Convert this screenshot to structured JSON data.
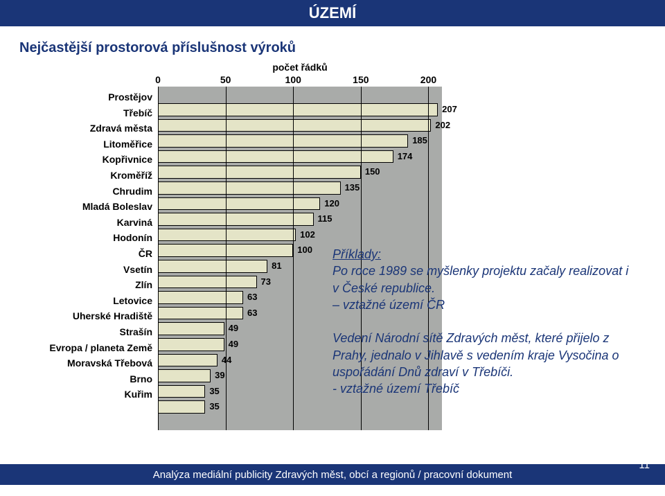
{
  "header": {
    "title": "ÚZEMÍ"
  },
  "subtitle": "Nejčastější prostorová příslušnost výroků",
  "chart": {
    "type": "bar",
    "axis_title": "počet řádků",
    "xmin": 0,
    "xmax": 210,
    "xticks": [
      0,
      50,
      100,
      150,
      200
    ],
    "bar_fill": "#e4e4c7",
    "bar_border": "#000000",
    "background_color": "#a9aba9",
    "grid_color": "#000000",
    "categories": [
      "Prostějov",
      "Třebíč",
      "Zdravá města",
      "Litoměřice",
      "Kopřivnice",
      "Kroměříž",
      "Chrudim",
      "Mladá Boleslav",
      "Karviná",
      "Hodonín",
      "ČR",
      "Vsetín",
      "Zlín",
      "Letovice",
      "Uherské Hradiště",
      "Strašín",
      "Evropa / planeta Země",
      "Moravská Třebová",
      "Brno",
      "Kuřim"
    ],
    "values": [
      207,
      202,
      185,
      174,
      150,
      135,
      120,
      115,
      102,
      100,
      81,
      73,
      63,
      63,
      49,
      49,
      44,
      39,
      35,
      35
    ]
  },
  "examples": {
    "title": "Příklady:",
    "para1": "Po roce 1989 se myšlenky projektu začaly realizovat i v České republice.",
    "line1": "– vztažné území ČR",
    "para2": "Vedení Národní sítě Zdravých měst, které přijelo z Prahy, jednalo v Jihlavě s vedením kraje Vysočina o uspořádání Dnů zdraví v Třebíči.",
    "line2": "- vztažné území Třebíč"
  },
  "footer": {
    "text": "Analýza mediální publicity Zdravých měst, obcí a regionů / pracovní dokument",
    "page": "11"
  }
}
